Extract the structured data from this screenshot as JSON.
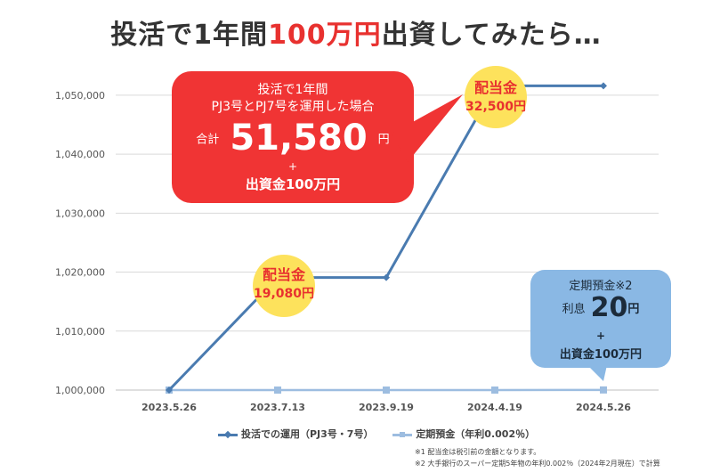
{
  "title": {
    "part1": "投活で1年間",
    "highlight": "100万円",
    "part2": "出資してみたら…"
  },
  "chart_data": {
    "type": "line",
    "categories": [
      "2023.5.26",
      "2023.7.13",
      "2023.9.19",
      "2024.4.19",
      "2024.5.26"
    ],
    "ylim": [
      1000000,
      1053000
    ],
    "yticks": [
      1000000,
      1010000,
      1020000,
      1030000,
      1040000,
      1050000
    ],
    "ytick_labels": [
      "1,000,000",
      "1,010,000",
      "1,020,000",
      "1,030,000",
      "1,040,000",
      "1,050,000"
    ],
    "grid": true,
    "legend_position": "bottom",
    "series": [
      {
        "name": "投活での運用（PJ3号・7号）",
        "color": "#4a7bb0",
        "marker": "diamond",
        "values": [
          1000000,
          1019080,
          1019080,
          1051580,
          1051580
        ]
      },
      {
        "name": "定期預金（年利0.002％）",
        "color": "#9dbde0",
        "marker": "square",
        "values": [
          1000000,
          1000000,
          1000000,
          1000000,
          1000020
        ]
      }
    ]
  },
  "callout_investment": {
    "line1": "投活で1年間",
    "line2": "PJ3号とPJ7号を運用した場合",
    "total_label": "合計",
    "total_value": "51,580",
    "total_unit": "円",
    "plus": "+",
    "principal": "出資金100万円"
  },
  "callout_deposit": {
    "line1": "定期預金※2",
    "interest_label": "利息",
    "interest_value": "20",
    "interest_unit": "円",
    "plus": "+",
    "principal": "出資金100万円"
  },
  "dividend_1": {
    "label": "配当金",
    "amount": "19,080円"
  },
  "dividend_2": {
    "label": "配当金",
    "amount": "32,500円"
  },
  "notes": {
    "note1": "※1 配当金は税引前の金額となります。",
    "note2": "※2 大手銀行のスーパー定期5年物の年利0.002％（2024年2月現在）で計算"
  },
  "colors": {
    "accent_red": "#e8312f",
    "bubble_red": "#f03434",
    "bubble_blue": "#8ab8e4",
    "coin_yellow": "#fde25c"
  }
}
